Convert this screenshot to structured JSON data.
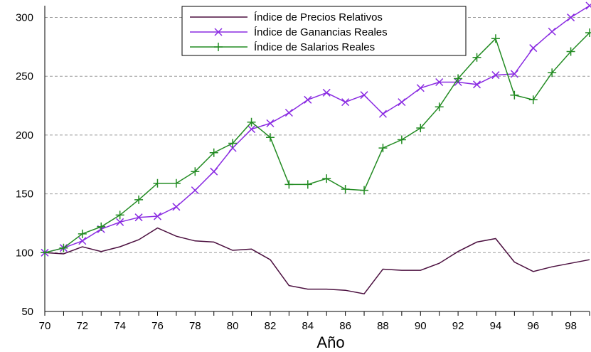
{
  "chart_data": {
    "type": "line",
    "title": "",
    "xlabel": "Año",
    "ylabel": "",
    "x": [
      70,
      71,
      72,
      73,
      74,
      75,
      76,
      77,
      78,
      79,
      80,
      81,
      82,
      83,
      84,
      85,
      86,
      87,
      88,
      89,
      90,
      91,
      92,
      93,
      94,
      95,
      96,
      97,
      98,
      99
    ],
    "x_tick_labels": [
      "70",
      "72",
      "74",
      "76",
      "78",
      "80",
      "82",
      "84",
      "86",
      "88",
      "90",
      "92",
      "94",
      "96",
      "98"
    ],
    "y_ticks": [
      50,
      100,
      150,
      200,
      250,
      300
    ],
    "xlim": [
      70,
      99
    ],
    "ylim": [
      50,
      310
    ],
    "grid": "horizontal dashed",
    "legend_position": "top-center",
    "series": [
      {
        "name": "Índice de Precios Relativos",
        "color": "#4b0f3f",
        "marker": "none",
        "values": [
          100,
          99,
          105,
          101,
          105,
          111,
          121,
          114,
          110,
          109,
          102,
          103,
          94,
          72,
          69,
          69,
          68,
          65,
          86,
          85,
          85,
          91,
          101,
          109,
          112,
          92,
          84,
          88,
          91,
          94
        ]
      },
      {
        "name": "Índice de Ganancias Reales",
        "color": "#8a2be2",
        "marker": "x",
        "values": [
          100,
          104,
          110,
          120,
          126,
          130,
          131,
          139,
          153,
          169,
          189,
          205,
          210,
          219,
          230,
          236,
          228,
          234,
          218,
          228,
          240,
          245,
          245,
          243,
          251,
          252,
          274,
          288,
          300,
          310
        ]
      },
      {
        "name": "Índice de Salarios Reales",
        "color": "#228b22",
        "marker": "plus",
        "values": [
          100,
          104,
          116,
          122,
          132,
          145,
          159,
          159,
          169,
          185,
          193,
          211,
          198,
          158,
          158,
          163,
          154,
          153,
          189,
          196,
          206,
          224,
          248,
          266,
          282,
          234,
          230,
          253,
          271,
          287
        ]
      }
    ]
  }
}
